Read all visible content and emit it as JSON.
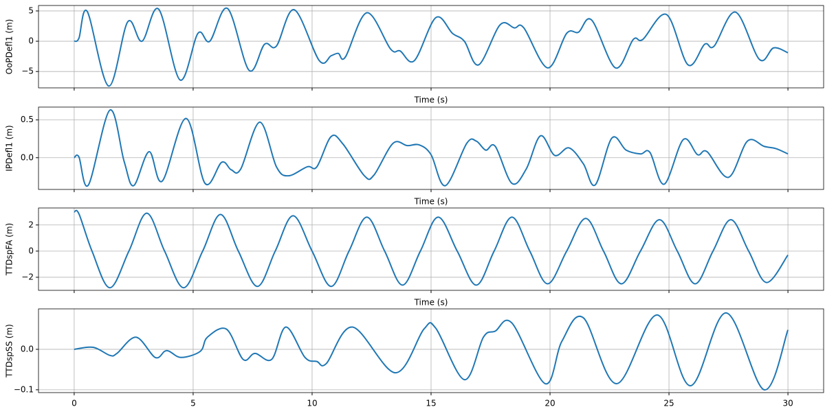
{
  "chart_data": [
    {
      "type": "line",
      "ylabel": "OoPDefl1 (m)",
      "xlabel": "Time (s)",
      "grid": true,
      "color": "#1f77b4",
      "xlim": [
        -1.5,
        31.5
      ],
      "ylim": [
        -7.7,
        5.9
      ],
      "xticks": [
        0,
        5,
        10,
        15,
        20,
        25,
        30
      ],
      "yticks": [
        {
          "value": -5,
          "label": "−5"
        },
        0,
        5
      ],
      "x": [
        0,
        0.2,
        0.55,
        1.45,
        2.25,
        2.85,
        3.55,
        4.45,
        5.2,
        5.7,
        6.45,
        7.35,
        8.0,
        8.5,
        9.25,
        10.3,
        10.8,
        11.1,
        11.4,
        12.3,
        13.3,
        13.7,
        14.3,
        15.2,
        15.9,
        16.4,
        17.0,
        17.9,
        18.5,
        18.9,
        19.9,
        20.7,
        21.2,
        21.75,
        22.75,
        23.5,
        23.9,
        24.9,
        25.8,
        26.5,
        26.9,
        27.8,
        28.8,
        29.4,
        30
      ],
      "values": [
        0,
        0.5,
        4.9,
        -7.4,
        3.2,
        0,
        5.3,
        -6.4,
        1.3,
        0,
        5.4,
        -4.8,
        -0.5,
        -0.8,
        5.2,
        -3.2,
        -2.4,
        -2.0,
        -2.6,
        4.7,
        -1.3,
        -1.6,
        -3.2,
        3.9,
        1.3,
        0,
        -3.9,
        2.7,
        2.2,
        2.2,
        -4.4,
        1.3,
        1.5,
        3.5,
        -4.4,
        0.3,
        0.3,
        4.4,
        -3.9,
        -0.5,
        -0.8,
        4.8,
        -3.0,
        -1.1,
        -1.9
      ]
    },
    {
      "type": "line",
      "ylabel": "IPDefl1 (m)",
      "xlabel": "Time (s)",
      "grid": true,
      "color": "#1f77b4",
      "xlim": [
        -1.5,
        31.5
      ],
      "ylim": [
        -0.42,
        0.67
      ],
      "xticks": [
        0,
        5,
        10,
        15,
        20,
        25,
        30
      ],
      "yticks": [
        {
          "value": 0,
          "label": "0.0"
        },
        0.5
      ],
      "x": [
        0,
        0.2,
        0.6,
        1.5,
        2.1,
        2.5,
        3.15,
        3.7,
        4.7,
        5.5,
        6.2,
        6.6,
        7.0,
        7.8,
        8.5,
        9.0,
        9.8,
        10.2,
        10.8,
        11.3,
        12.2,
        12.6,
        13.4,
        14.0,
        14.5,
        15.0,
        15.6,
        16.5,
        16.9,
        17.3,
        17.7,
        18.4,
        19.0,
        19.6,
        20.2,
        20.8,
        21.4,
        21.9,
        22.6,
        23.2,
        23.8,
        24.2,
        24.8,
        25.6,
        26.2,
        26.6,
        27.5,
        28.3,
        29.0,
        29.5,
        30
      ],
      "values": [
        0,
        0.01,
        -0.36,
        0.63,
        -0.05,
        -0.37,
        0.08,
        -0.31,
        0.52,
        -0.34,
        -0.06,
        -0.16,
        -0.15,
        0.47,
        -0.12,
        -0.24,
        -0.12,
        -0.12,
        0.28,
        0.18,
        -0.24,
        -0.23,
        0.19,
        0.16,
        0.17,
        0.04,
        -0.37,
        0.19,
        0.22,
        0.1,
        0.15,
        -0.34,
        -0.15,
        0.29,
        0.03,
        0.13,
        -0.08,
        -0.36,
        0.26,
        0.1,
        0.05,
        0.07,
        -0.35,
        0.24,
        0.04,
        0.08,
        -0.26,
        0.22,
        0.15,
        0.12,
        0.05
      ]
    },
    {
      "type": "line",
      "ylabel": "TTDspFA (m)",
      "xlabel": "Time (s)",
      "grid": true,
      "color": "#1f77b4",
      "xlim": [
        -1.5,
        31.5
      ],
      "ylim": [
        -3.0,
        3.3
      ],
      "xticks": [
        0,
        5,
        10,
        15,
        20,
        25,
        30
      ],
      "yticks": [
        {
          "value": -2,
          "label": "−2"
        },
        0,
        2
      ],
      "x": [
        0,
        0.2,
        0.75,
        1.5,
        2.3,
        3.05,
        3.8,
        4.6,
        5.4,
        6.15,
        6.9,
        7.7,
        8.45,
        9.2,
        10.0,
        10.8,
        11.55,
        12.3,
        13.05,
        13.8,
        14.55,
        15.3,
        16.1,
        16.9,
        17.65,
        18.4,
        19.15,
        19.9,
        20.7,
        21.5,
        22.25,
        23.0,
        23.8,
        24.6,
        25.35,
        26.1,
        26.85,
        27.6,
        28.35,
        29.1,
        30
      ],
      "values": [
        3.0,
        2.85,
        0,
        -2.8,
        0,
        2.9,
        0,
        -2.8,
        0,
        2.8,
        0,
        -2.7,
        0,
        2.7,
        0,
        -2.7,
        0,
        2.6,
        0,
        -2.6,
        0,
        2.6,
        0,
        -2.6,
        0,
        2.6,
        0,
        -2.5,
        0,
        2.5,
        0,
        -2.5,
        0,
        2.4,
        0,
        -2.5,
        0,
        2.4,
        0,
        -2.4,
        -0.3
      ]
    },
    {
      "type": "line",
      "ylabel": "TTDspSS (m)",
      "grid": true,
      "color": "#1f77b4",
      "xlim": [
        -1.5,
        31.5
      ],
      "ylim": [
        -0.107,
        0.1
      ],
      "xticks": [
        0,
        5,
        10,
        15,
        20,
        25,
        30
      ],
      "yticks": [
        {
          "value": -0.1,
          "label": "−0.1"
        },
        {
          "value": 0,
          "label": "0.0"
        }
      ],
      "x": [
        0,
        0.8,
        1.5,
        1.8,
        2.6,
        3.4,
        3.8,
        4.0,
        4.5,
        5.3,
        5.6,
        6.4,
        7.1,
        7.6,
        8.3,
        8.9,
        9.7,
        10.2,
        10.6,
        11.7,
        13.5,
        14.7,
        15.2,
        16.4,
        17.2,
        17.7,
        18.4,
        19.8,
        20.5,
        21.4,
        22.8,
        24.5,
        25.9,
        27.4,
        29.0,
        30
      ],
      "values": [
        0,
        0.005,
        -0.015,
        -0.01,
        0.03,
        -0.02,
        -0.005,
        -0.005,
        -0.02,
        -0.005,
        0.03,
        0.05,
        -0.025,
        -0.01,
        -0.025,
        0.055,
        -0.02,
        -0.03,
        -0.035,
        0.055,
        -0.058,
        0.05,
        0.052,
        -0.075,
        0.03,
        0.045,
        0.065,
        -0.085,
        0.02,
        0.078,
        -0.085,
        0.085,
        -0.09,
        0.09,
        -0.1,
        0.048
      ]
    }
  ]
}
